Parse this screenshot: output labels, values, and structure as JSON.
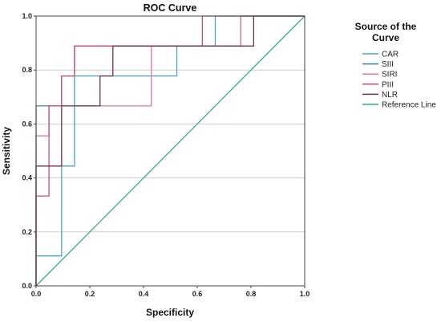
{
  "chart_data": {
    "type": "line",
    "title": "ROC Curve",
    "xlabel": "Specificity",
    "ylabel": "Sensitivity",
    "xlim": [
      0,
      1
    ],
    "ylim": [
      0,
      1
    ],
    "xticks": [
      "0.0",
      "0.2",
      "0.4",
      "0.6",
      "0.8",
      "1.0"
    ],
    "yticks": [
      "0.0",
      "0.2",
      "0.4",
      "0.6",
      "0.8",
      "1.0"
    ],
    "grid": "horizontal",
    "legend_title_lines": [
      "Source of the",
      "Curve"
    ],
    "legend_position": "right",
    "series": [
      {
        "name": "CAR",
        "color": "#4aa5c8",
        "x": [
          0,
          0,
          0.095,
          0.095,
          0.143,
          0.143,
          0.238,
          0.238,
          0.524,
          0.524,
          0.619,
          0.619,
          0.667,
          0.667,
          1
        ],
        "y": [
          0,
          0.111,
          0.111,
          0.444,
          0.444,
          0.778,
          0.778,
          0.778,
          0.778,
          0.889,
          0.889,
          0.889,
          0.889,
          1,
          1
        ]
      },
      {
        "name": "SIII",
        "color": "#3a8a9a",
        "x": [
          0,
          0,
          0.095,
          0.095,
          0.143,
          0.143,
          0.619,
          0.619,
          0.762,
          0.762,
          1
        ],
        "y": [
          0,
          0.667,
          0.667,
          0.778,
          0.778,
          0.889,
          0.889,
          0.889,
          0.889,
          1,
          1
        ]
      },
      {
        "name": "SIRI",
        "color": "#e8759a",
        "x": [
          0,
          0,
          0.048,
          0.048,
          0.286,
          0.286,
          0.429,
          0.429,
          0.762,
          0.762,
          1
        ],
        "y": [
          0,
          0.556,
          0.556,
          0.667,
          0.667,
          0.667,
          0.667,
          0.889,
          0.889,
          1,
          1
        ]
      },
      {
        "name": "PIII",
        "color": "#cc4e72",
        "x": [
          0,
          0,
          0.048,
          0.048,
          0.095,
          0.095,
          0.143,
          0.143,
          0.619,
          0.619,
          1
        ],
        "y": [
          0,
          0.333,
          0.333,
          0.667,
          0.667,
          0.778,
          0.778,
          0.889,
          0.889,
          1,
          1
        ]
      },
      {
        "name": "NLR",
        "color": "#7a2e4e",
        "x": [
          0,
          0,
          0.095,
          0.095,
          0.238,
          0.238,
          0.286,
          0.286,
          0.81,
          0.81,
          1
        ],
        "y": [
          0,
          0.444,
          0.444,
          0.667,
          0.667,
          0.778,
          0.778,
          0.889,
          0.889,
          1,
          1
        ]
      },
      {
        "name": "Reference Line",
        "color": "#3aaa8c",
        "x": [
          0,
          1
        ],
        "y": [
          0,
          1
        ]
      }
    ]
  }
}
